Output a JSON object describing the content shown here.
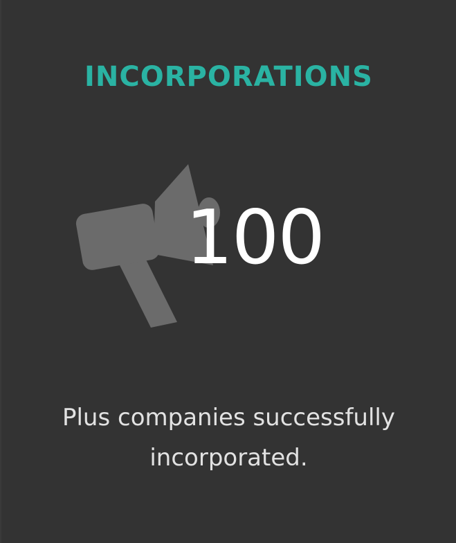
{
  "card": {
    "title": "INCORPORATIONS",
    "icon": "megaphone-icon",
    "number": "100",
    "description_line1": "Plus companies successfully",
    "description_line2": "incorporated."
  },
  "colors": {
    "background": "#333333",
    "accent": "#2ab3a3",
    "icon": "#6b6b6b",
    "number": "#ffffff",
    "text": "#e2e2e2"
  }
}
